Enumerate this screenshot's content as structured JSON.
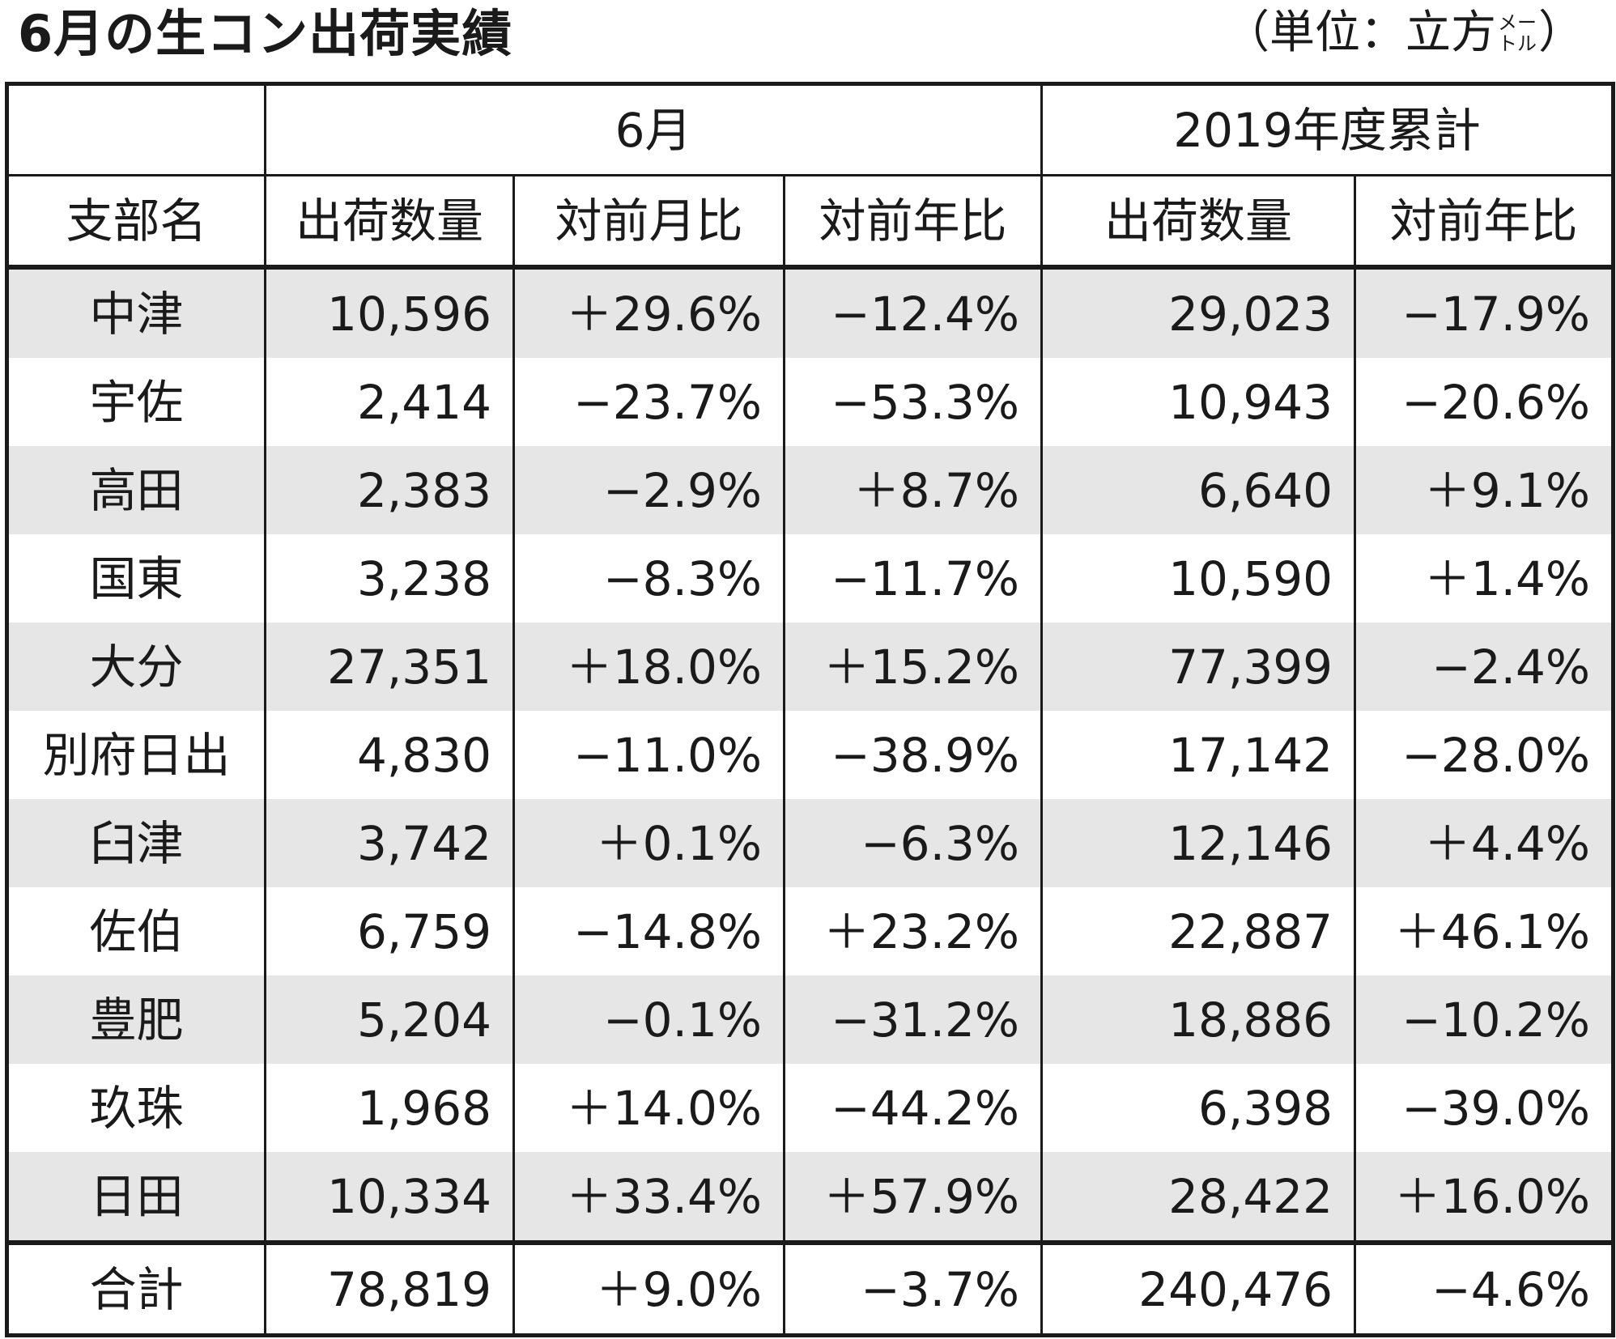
{
  "title": "6月の生コン出荷実績",
  "unit": {
    "prefix": "（単位：立方",
    "small_top": "メー",
    "small_bottom": "トル",
    "suffix": "）"
  },
  "header": {
    "group_june": "6月",
    "group_cumulative": "2019年度累計",
    "col_branch": "支部名",
    "col_qty": "出荷数量",
    "col_mom": "対前月比",
    "col_yoy": "対前年比",
    "col_cum_qty": "出荷数量",
    "col_cum_yoy": "対前年比"
  },
  "rows": [
    {
      "branch": "中津",
      "qty": "10,596",
      "mom": "＋29.6%",
      "yoy": "−12.4%",
      "cum_qty": "29,023",
      "cum_yoy": "−17.9%"
    },
    {
      "branch": "宇佐",
      "qty": "2,414",
      "mom": "−23.7%",
      "yoy": "−53.3%",
      "cum_qty": "10,943",
      "cum_yoy": "−20.6%"
    },
    {
      "branch": "高田",
      "qty": "2,383",
      "mom": "−2.9%",
      "yoy": "＋8.7%",
      "cum_qty": "6,640",
      "cum_yoy": "＋9.1%"
    },
    {
      "branch": "国東",
      "qty": "3,238",
      "mom": "−8.3%",
      "yoy": "−11.7%",
      "cum_qty": "10,590",
      "cum_yoy": "＋1.4%"
    },
    {
      "branch": "大分",
      "qty": "27,351",
      "mom": "＋18.0%",
      "yoy": "＋15.2%",
      "cum_qty": "77,399",
      "cum_yoy": "−2.4%"
    },
    {
      "branch": "別府日出",
      "qty": "4,830",
      "mom": "−11.0%",
      "yoy": "−38.9%",
      "cum_qty": "17,142",
      "cum_yoy": "−28.0%"
    },
    {
      "branch": "臼津",
      "qty": "3,742",
      "mom": "＋0.1%",
      "yoy": "−6.3%",
      "cum_qty": "12,146",
      "cum_yoy": "＋4.4%"
    },
    {
      "branch": "佐伯",
      "qty": "6,759",
      "mom": "−14.8%",
      "yoy": "＋23.2%",
      "cum_qty": "22,887",
      "cum_yoy": "＋46.1%"
    },
    {
      "branch": "豊肥",
      "qty": "5,204",
      "mom": "−0.1%",
      "yoy": "−31.2%",
      "cum_qty": "18,886",
      "cum_yoy": "−10.2%"
    },
    {
      "branch": "玖珠",
      "qty": "1,968",
      "mom": "＋14.0%",
      "yoy": "−44.2%",
      "cum_qty": "6,398",
      "cum_yoy": "−39.0%"
    },
    {
      "branch": "日田",
      "qty": "10,334",
      "mom": "＋33.4%",
      "yoy": "＋57.9%",
      "cum_qty": "28,422",
      "cum_yoy": "＋16.0%"
    }
  ],
  "total": {
    "branch": "合計",
    "qty": "78,819",
    "mom": "＋9.0%",
    "yoy": "−3.7%",
    "cum_qty": "240,476",
    "cum_yoy": "−4.6%"
  },
  "colors": {
    "stripe": "#e6e6e6",
    "line": "#1a1a1a"
  }
}
